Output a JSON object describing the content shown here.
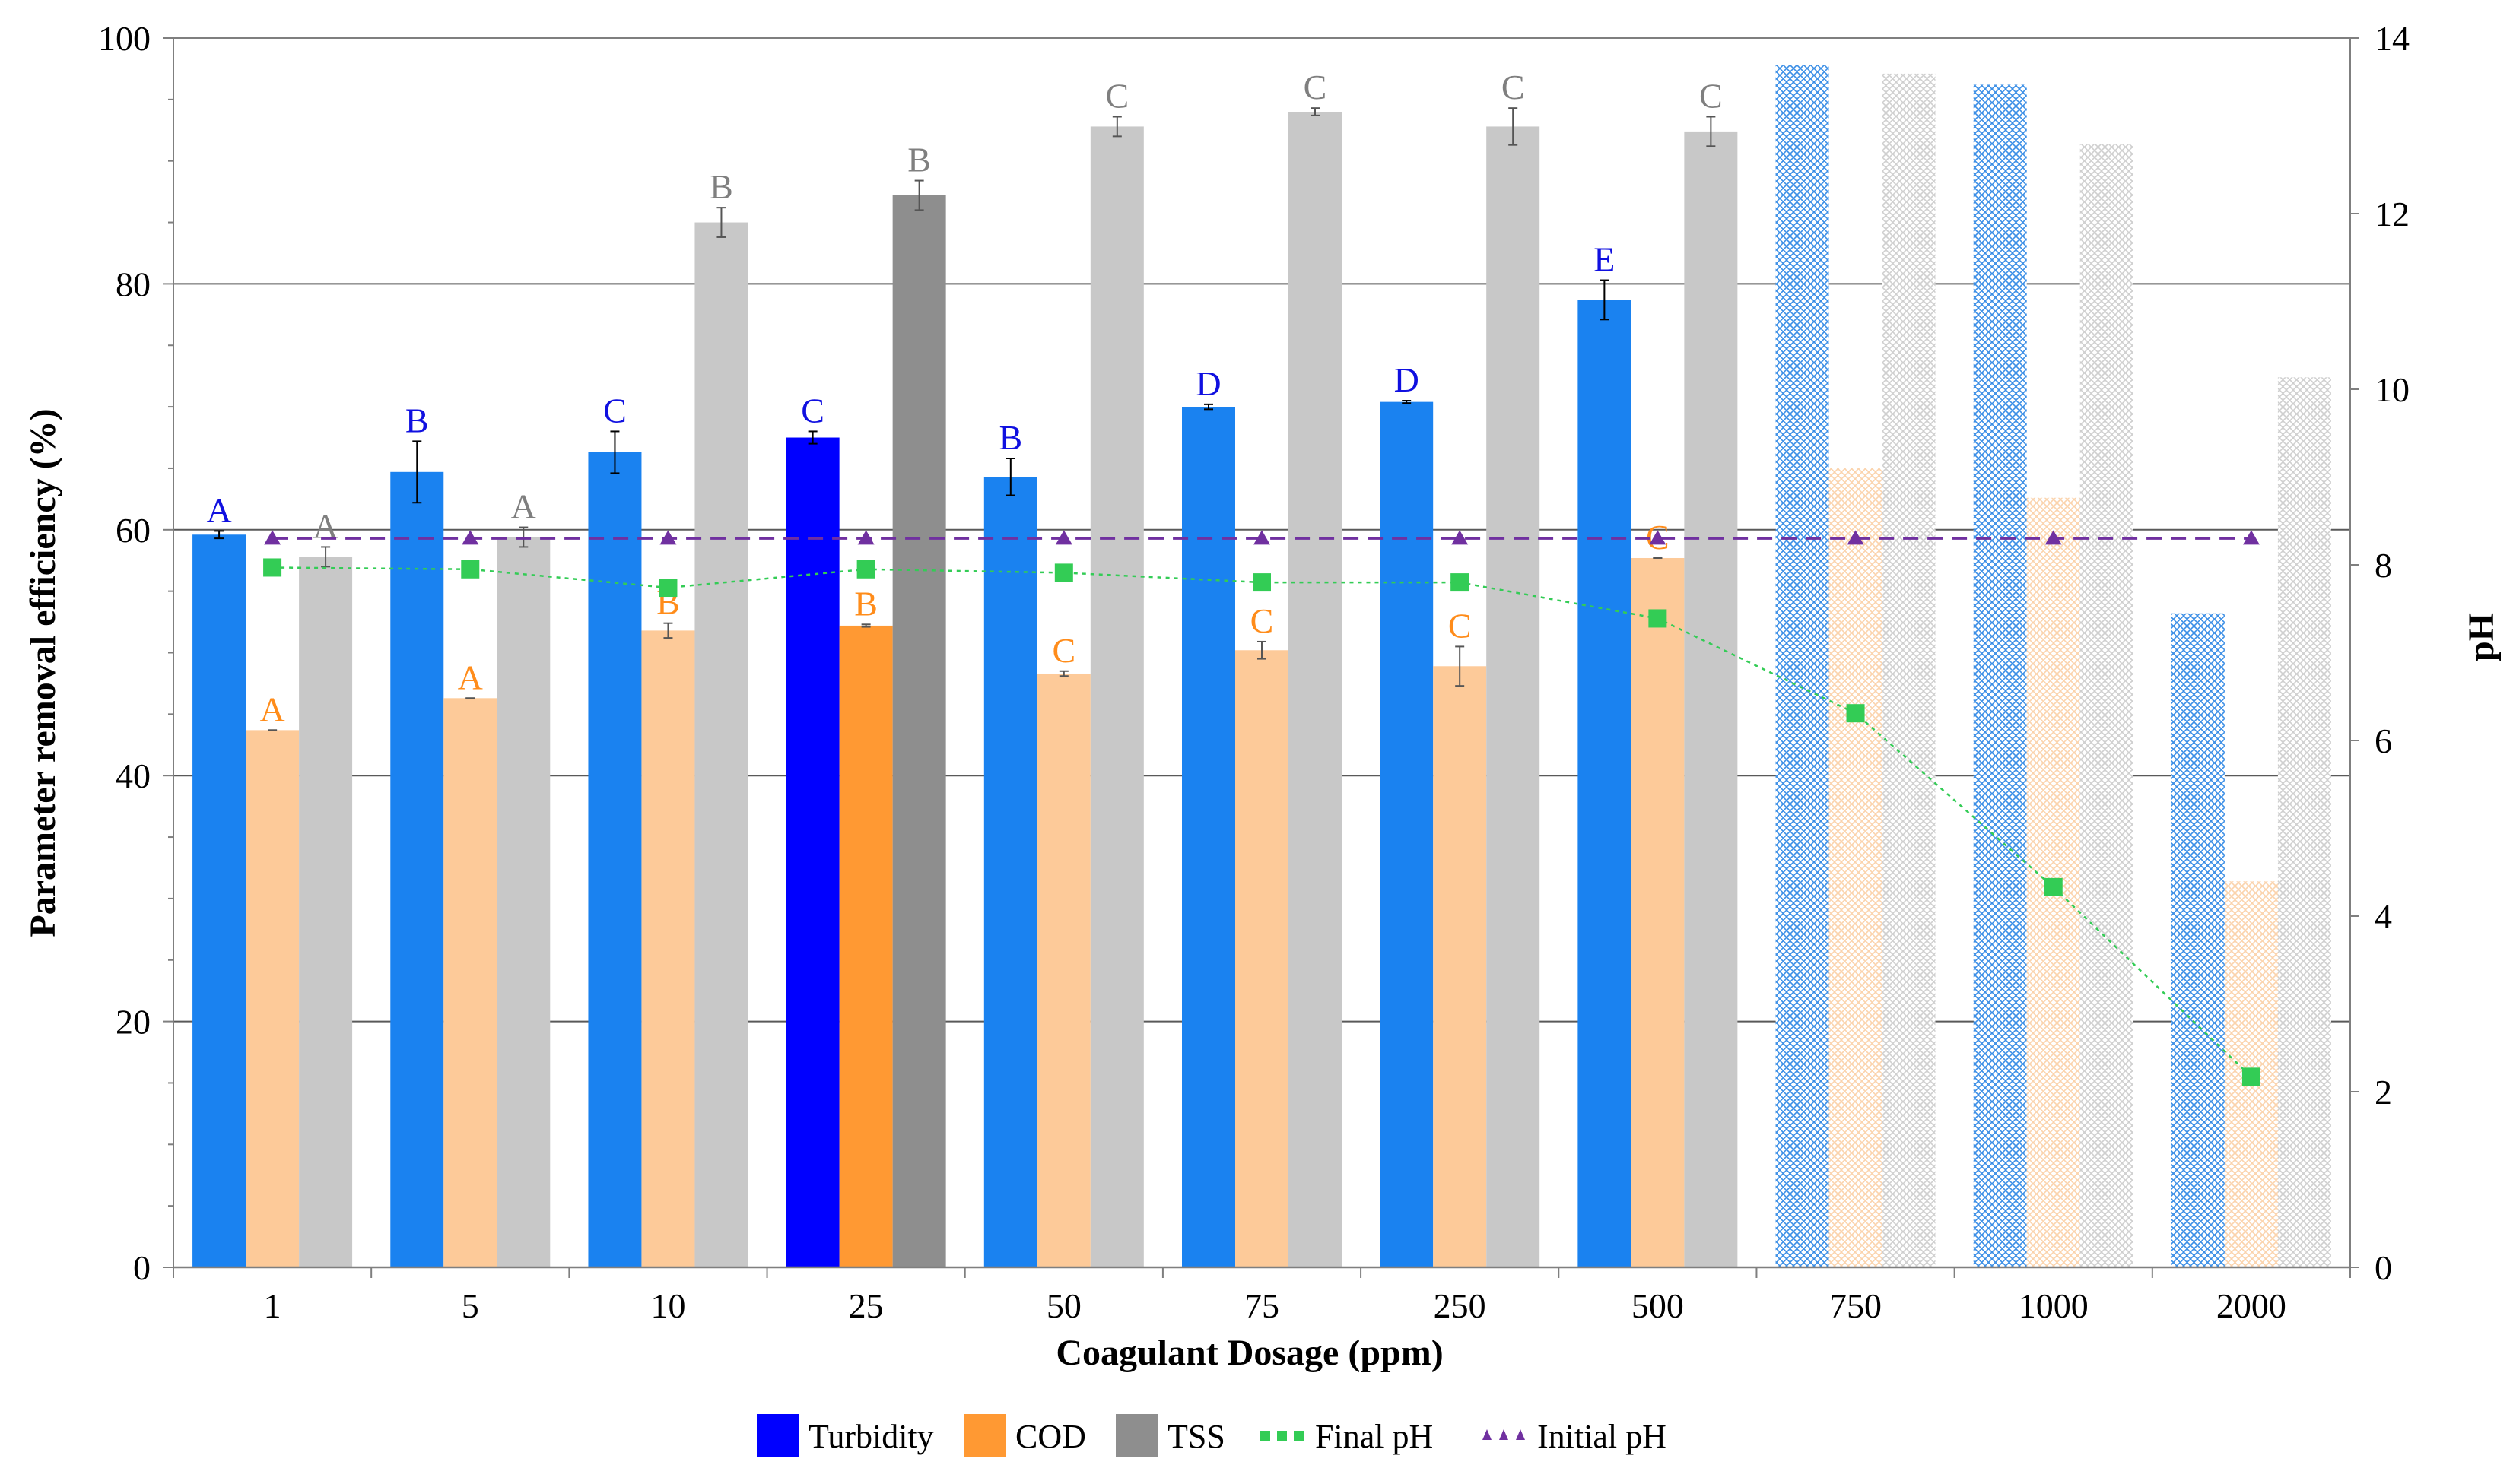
{
  "chart_data": {
    "type": "bar",
    "title": "",
    "xlabel": "Coagulant Dosage (ppm)",
    "ylabel": "Parameter removal efficiency (%)",
    "y2label": "pH",
    "ylim": [
      0,
      100
    ],
    "y2lim": [
      0,
      14
    ],
    "yticks": [
      "0",
      "20",
      "40",
      "60",
      "80",
      "100"
    ],
    "y2ticks": [
      "0",
      "2",
      "4",
      "6",
      "8",
      "10",
      "12",
      "14"
    ],
    "gridlines_at": [
      20,
      40,
      60,
      80
    ],
    "categories": [
      "1",
      "5",
      "10",
      "25",
      "50",
      "75",
      "250",
      "500",
      "750",
      "1000",
      "2000"
    ],
    "highlight_category_index": 3,
    "hatched_from_index": 8,
    "legend_position": "bottom-center",
    "colors": {
      "turbidity": "#1a82f0",
      "turbidity_highlight": "#0000ff",
      "cod": "#fdca99",
      "cod_highlight": "#ff9933",
      "tss": "#c8c8c8",
      "tss_highlight": "#8e8e8e",
      "final_ph": "#33cc55",
      "initial_ph": "#7030a0",
      "label_turbidity": "#1010e0",
      "label_cod": "#ff8c1a",
      "label_tss": "#7f7f7f"
    },
    "bar_series": [
      {
        "name": "Turbidity",
        "key": "turbidity",
        "values": [
          59.6,
          64.7,
          66.3,
          67.5,
          64.3,
          70.0,
          70.4,
          78.7,
          97.8,
          96.2,
          53.2
        ],
        "errors": [
          0.3,
          2.5,
          1.7,
          0.5,
          1.5,
          0.2,
          0.1,
          1.6,
          null,
          null,
          null
        ],
        "letters": [
          "A",
          "B",
          "C",
          "C",
          "B",
          "D",
          "D",
          "E",
          "",
          "",
          ""
        ]
      },
      {
        "name": "COD",
        "key": "cod",
        "values": [
          43.7,
          46.3,
          51.8,
          52.2,
          48.3,
          50.2,
          48.9,
          57.7,
          65.0,
          62.6,
          31.4
        ],
        "errors": [
          0.0,
          0.0,
          0.6,
          0.1,
          0.2,
          0.7,
          1.6,
          0.0,
          null,
          null,
          null
        ],
        "letters": [
          "A",
          "A",
          "B",
          "B",
          "C",
          "C",
          "C",
          "C",
          "",
          "",
          ""
        ]
      },
      {
        "name": "TSS",
        "key": "tss",
        "values": [
          57.8,
          59.4,
          85.0,
          87.2,
          92.8,
          94.0,
          92.8,
          92.4,
          97.1,
          91.4,
          72.4
        ],
        "errors": [
          0.8,
          0.8,
          1.2,
          1.2,
          0.8,
          0.3,
          1.5,
          1.2,
          null,
          null,
          null
        ],
        "letters": [
          "A",
          "A",
          "B",
          "B",
          "C",
          "C",
          "C",
          "C",
          "",
          "",
          ""
        ]
      }
    ],
    "line_series": [
      {
        "name": "Final pH",
        "key": "final_ph",
        "values": [
          7.97,
          7.95,
          7.74,
          7.95,
          7.91,
          7.8,
          7.8,
          7.39,
          6.31,
          4.33,
          2.17
        ]
      },
      {
        "name": "Initial pH",
        "key": "initial_ph",
        "values": [
          8.3,
          8.3,
          8.3,
          8.3,
          8.3,
          8.3,
          8.3,
          8.3,
          8.3,
          8.3,
          8.3
        ]
      }
    ],
    "legend": [
      {
        "label": "Turbidity",
        "key": "turbidity_highlight",
        "kind": "box"
      },
      {
        "label": "COD",
        "key": "cod_highlight",
        "kind": "box"
      },
      {
        "label": "TSS",
        "key": "tss_highlight",
        "kind": "box"
      },
      {
        "label": "Final pH",
        "key": "final_ph",
        "kind": "square-line"
      },
      {
        "label": "Initial pH",
        "key": "initial_ph",
        "kind": "triangle-line"
      }
    ]
  }
}
